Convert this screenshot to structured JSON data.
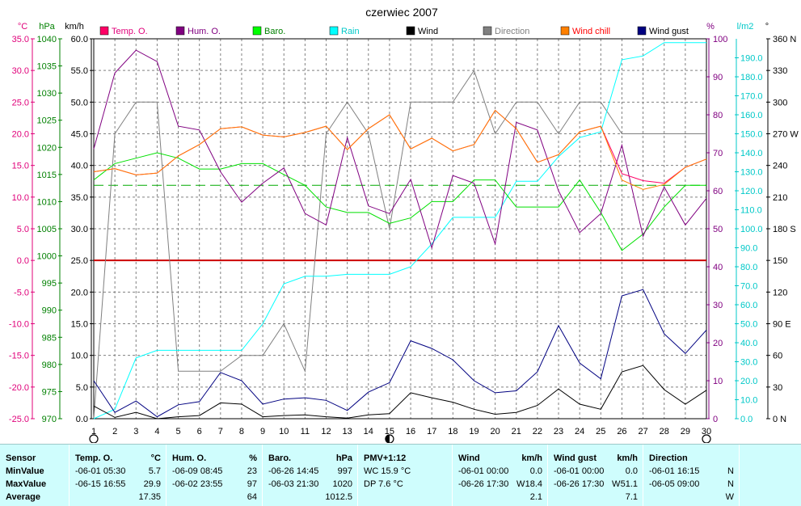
{
  "chart_data": {
    "type": "line",
    "title": "czerwiec 2007",
    "x": [
      1,
      2,
      3,
      4,
      5,
      6,
      7,
      8,
      9,
      10,
      11,
      12,
      13,
      14,
      15,
      16,
      17,
      18,
      19,
      20,
      21,
      22,
      23,
      24,
      25,
      26,
      27,
      28,
      29,
      30
    ],
    "xlim": [
      1,
      30
    ],
    "x_ticks": [
      "1",
      "2",
      "3",
      "4",
      "5",
      "6",
      "7",
      "8",
      "9",
      "10",
      "11",
      "12",
      "13",
      "14",
      "15",
      "16",
      "17",
      "18",
      "19",
      "20",
      "21",
      "22",
      "23",
      "24",
      "25",
      "26",
      "27",
      "28",
      "29",
      "30"
    ],
    "grid": true,
    "legend_position": "top",
    "axes": {
      "temp": {
        "unit": "°C",
        "range": [
          -25,
          35
        ],
        "ticks": [
          "35.0",
          "30.0",
          "25.0",
          "20.0",
          "15.0",
          "10.0",
          "5.0",
          "0.0",
          "-5.0",
          "-10.0",
          "-15.0",
          "-20.0",
          "-25.0"
        ],
        "color": "#e0007a"
      },
      "baro": {
        "unit": "hPa",
        "range": [
          970,
          1040
        ],
        "ticks": [
          "1040",
          "1035",
          "1030",
          "1025",
          "1020",
          "1015",
          "1010",
          "1005",
          "1000",
          "995",
          "990",
          "985",
          "980",
          "975",
          "970"
        ],
        "color": "#008000"
      },
      "wind": {
        "unit": "km/h",
        "range": [
          0,
          60
        ],
        "ticks": [
          "60.0",
          "55.0",
          "50.0",
          "45.0",
          "40.0",
          "35.0",
          "30.0",
          "25.0",
          "20.0",
          "15.0",
          "10.0",
          "5.0",
          "0.0"
        ],
        "color": "#000000"
      },
      "hum": {
        "unit": "%",
        "range": [
          0,
          100
        ],
        "ticks": [
          "100",
          "90",
          "80",
          "70",
          "60",
          "50",
          "40",
          "30",
          "20",
          "10",
          "0"
        ],
        "color": "#800080"
      },
      "rain": {
        "unit": "l/m2",
        "range": [
          0,
          200
        ],
        "ticks": [
          "190.0",
          "180.0",
          "170.0",
          "160.0",
          "150.0",
          "140.0",
          "130.0",
          "120.0",
          "110.0",
          "100.0",
          "90.0",
          "80.0",
          "70.0",
          "60.0",
          "50.0",
          "40.0",
          "30.0",
          "20.0",
          "10.0",
          "0.0"
        ],
        "color": "#00c8c8"
      },
      "dir": {
        "unit": "°",
        "range": [
          0,
          360
        ],
        "ticks": [
          "360 N",
          "330",
          "300",
          "270 W",
          "240",
          "210",
          "180 S",
          "150",
          "120",
          "90 E",
          "60",
          "30",
          "0 N"
        ],
        "color": "#000000"
      }
    },
    "zero_line": {
      "axis": "temp",
      "value": 0,
      "color": "#cc0000"
    },
    "baro_reference": {
      "axis": "baro",
      "value": 1013,
      "color": "#00aa00",
      "dashed": true
    },
    "moon_markers": [
      {
        "x": 1,
        "phase": "new"
      },
      {
        "x": 15,
        "phase": "half"
      },
      {
        "x": 30,
        "phase": "new"
      }
    ],
    "series": [
      {
        "name": "Direction",
        "axis": "dir",
        "color": "#808080",
        "values": [
          0,
          270,
          300,
          300,
          45,
          45,
          45,
          60,
          60,
          90,
          45,
          270,
          300,
          270,
          180,
          300,
          300,
          300,
          330,
          270,
          300,
          300,
          270,
          300,
          300,
          270,
          270,
          270,
          270,
          270
        ]
      },
      {
        "name": "Rain",
        "axis": "rain",
        "color": "#00ffff",
        "values": [
          0,
          5,
          32,
          36,
          36,
          36,
          36,
          36,
          50,
          71,
          75,
          75,
          76,
          76,
          76,
          80,
          92,
          106,
          106,
          106,
          125,
          125,
          138,
          148,
          151,
          189,
          191,
          198,
          198,
          198
        ]
      },
      {
        "name": "Baro.",
        "axis": "baro",
        "color": "#00e000",
        "values": [
          1014,
          1017,
          1018,
          1019,
          1018,
          1016,
          1016,
          1017,
          1017,
          1015,
          1013,
          1009,
          1008,
          1008,
          1006,
          1007,
          1010,
          1010,
          1014,
          1014,
          1009,
          1009,
          1009,
          1014,
          1008,
          1001,
          1004,
          1009,
          1013,
          1013
        ]
      },
      {
        "name": "Hum. O.",
        "axis": "hum",
        "color": "#800080",
        "values": [
          71,
          91,
          97,
          94,
          77,
          76,
          65,
          57,
          62,
          66,
          54,
          51,
          74,
          56,
          54,
          63,
          45,
          64,
          62,
          46,
          78,
          76,
          60,
          49,
          54,
          72,
          48,
          61,
          51,
          58
        ]
      },
      {
        "name": "Temp. O.",
        "axis": "temp",
        "color": "#ff0066",
        "values": [
          14.0,
          14.5,
          13.5,
          13.8,
          16.5,
          18.3,
          20.8,
          21.1,
          19.8,
          19.5,
          20.2,
          21.2,
          17.5,
          20.8,
          23.0,
          17.6,
          19.3,
          17.3,
          18.3,
          23.7,
          20.8,
          15.5,
          16.7,
          20.3,
          21.2,
          13.7,
          12.6,
          12.2,
          14.7,
          16.0
        ]
      },
      {
        "name": "Wind chill",
        "axis": "temp",
        "color": "#ff8000",
        "values": [
          14.0,
          14.5,
          13.5,
          13.8,
          16.5,
          18.3,
          20.8,
          21.1,
          19.8,
          19.5,
          20.2,
          21.2,
          17.5,
          20.8,
          23.0,
          17.6,
          19.3,
          17.3,
          18.3,
          23.7,
          20.8,
          15.5,
          16.7,
          20.3,
          21.2,
          12.7,
          11.2,
          12.0,
          14.7,
          16.0
        ]
      },
      {
        "name": "Wind gust",
        "axis": "wind",
        "color": "#000080",
        "values": [
          6.0,
          1.0,
          2.8,
          0.3,
          2.2,
          2.7,
          7.3,
          6.0,
          2.3,
          3.1,
          3.3,
          2.9,
          1.3,
          4.2,
          5.7,
          12.3,
          11.1,
          9.3,
          6.0,
          4.1,
          4.4,
          7.4,
          14.7,
          8.8,
          6.3,
          19.4,
          20.4,
          13.4,
          10.3,
          14.0
        ]
      },
      {
        "name": "Wind",
        "axis": "wind",
        "color": "#000000",
        "values": [
          2.0,
          0.2,
          1.0,
          0.0,
          0.3,
          0.5,
          2.5,
          2.3,
          0.3,
          0.5,
          0.6,
          0.3,
          0.1,
          0.6,
          0.8,
          4.1,
          3.3,
          2.6,
          1.5,
          0.7,
          1.0,
          2.1,
          4.7,
          2.3,
          1.5,
          7.4,
          8.4,
          4.6,
          2.3,
          4.5
        ]
      }
    ]
  },
  "legend": [
    {
      "label": "Temp. O.",
      "color": "#ff0066",
      "text_color": "#e0007a"
    },
    {
      "label": "Hum. O.",
      "color": "#800080",
      "text_color": "#800080"
    },
    {
      "label": "Baro.",
      "color": "#00ff00",
      "text_color": "#008000"
    },
    {
      "label": "Rain",
      "color": "#00ffff",
      "text_color": "#00c8c8"
    },
    {
      "label": "Wind",
      "color": "#000000",
      "text_color": "#000000"
    },
    {
      "label": "Direction",
      "color": "#808080",
      "text_color": "#808080"
    },
    {
      "label": "Wind chill",
      "color": "#ff8000",
      "text_color": "#ff0000"
    },
    {
      "label": "Wind gust",
      "color": "#000080",
      "text_color": "#000000"
    }
  ],
  "table": {
    "row_labels": {
      "header": "Sensor",
      "min": "MinValue",
      "max": "MaxValue",
      "avg": "Average"
    },
    "temp": {
      "title": "Temp. O.",
      "unit": "°C",
      "min_time": "-06-01  05:30",
      "min_value": "5.7",
      "max_time": "-06-15  16:55",
      "max_value": "29.9",
      "avg": "17.35"
    },
    "hum": {
      "title": "Hum. O.",
      "unit": "%",
      "min_time": "-06-09  08:45",
      "min_value": "23",
      "max_time": "-06-02  23:55",
      "max_value": "97",
      "avg": "64"
    },
    "baro": {
      "title": "Baro.",
      "unit": "hPa",
      "min_time": "-06-26  14:45",
      "min_value": "997",
      "max_time": "-06-03  21:30",
      "max_value": "1020",
      "avg": "1012.5"
    },
    "pmv": {
      "title": "PMV+1:12",
      "wc": "WC 15.9 °C",
      "dp": "DP 7.6 °C"
    },
    "wind": {
      "title": "Wind",
      "unit": "km/h",
      "min_time": "-06-01  00:00",
      "min_value": "0.0",
      "max_time": "-06-26  17:30",
      "max_dir": "W",
      "max_value": "18.4",
      "avg": "2.1"
    },
    "gust": {
      "title": "Wind gust",
      "unit": "km/h",
      "min_time": "-06-01  00:00",
      "min_value": "0.0",
      "max_time": "-06-26  17:30",
      "max_dir": "W",
      "max_value": "51.1",
      "avg": "7.1"
    },
    "dir": {
      "title": "Direction",
      "min_time": "-06-01  16:15",
      "min_value": "N",
      "max_time": "-06-05  09:00",
      "max_value": "N",
      "avg": "W"
    }
  }
}
